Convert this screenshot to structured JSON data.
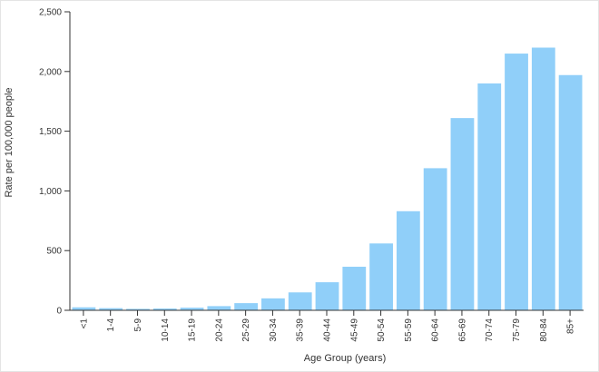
{
  "chart_data": {
    "type": "bar",
    "xlabel": "Age Group (years)",
    "ylabel": "Rate per 100,000 people",
    "ylim": [
      0,
      2500
    ],
    "yticks": [
      0,
      500,
      1000,
      1500,
      2000,
      2500
    ],
    "ytick_labels": [
      "0",
      "500",
      "1,000",
      "1,500",
      "2,000",
      "2,500"
    ],
    "grid": false,
    "bar_color": "#90cff9",
    "categories": [
      "<1",
      "1-4",
      "5-9",
      "10-14",
      "15-19",
      "20-24",
      "25-29",
      "30-34",
      "35-39",
      "40-44",
      "45-49",
      "50-54",
      "55-59",
      "60-64",
      "65-69",
      "70-74",
      "75-79",
      "80-84",
      "85+"
    ],
    "values": [
      25,
      18,
      12,
      15,
      22,
      35,
      60,
      100,
      150,
      235,
      365,
      560,
      830,
      1190,
      1610,
      1900,
      2150,
      2200,
      1970
    ]
  }
}
